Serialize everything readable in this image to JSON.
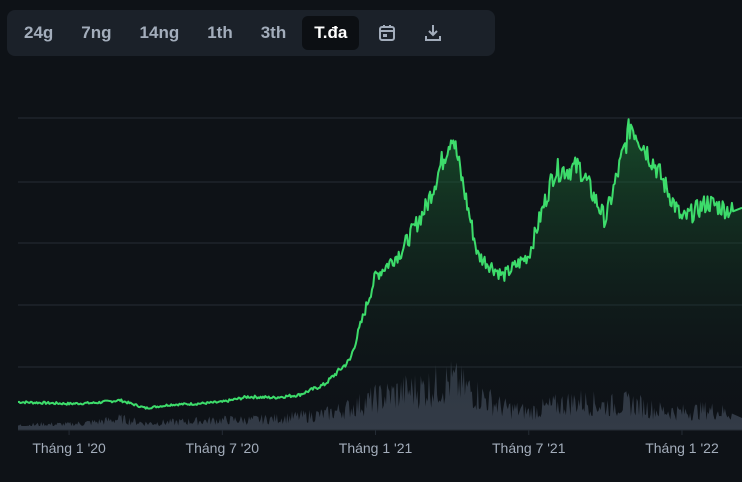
{
  "toolbar": {
    "ranges": [
      {
        "label": "24g",
        "active": false
      },
      {
        "label": "7ng",
        "active": false
      },
      {
        "label": "14ng",
        "active": false
      },
      {
        "label": "1th",
        "active": false
      },
      {
        "label": "3th",
        "active": false
      },
      {
        "label": "T.đa",
        "active": true
      }
    ],
    "calendar_icon": "calendar-icon",
    "download_icon": "download-icon"
  },
  "colors": {
    "background": "#0e1217",
    "toolbar_bg": "#1b2129",
    "line": "#3ddc6b",
    "volume": "#3a4350",
    "grid": "#252c35",
    "axis_text": "#a3adbb"
  },
  "chart_data": {
    "type": "area",
    "xlabel": "",
    "ylabel": "",
    "grid": true,
    "legend": "none",
    "x_ticks": [
      "Tháng 1 '20",
      "Tháng 7 '20",
      "Tháng 1 '21",
      "Tháng 7 '21",
      "Tháng 1 '22"
    ],
    "series": [
      {
        "x": [
          "2019-11",
          "2019-12",
          "2020-01",
          "2020-02",
          "2020-03",
          "2020-04",
          "2020-05",
          "2020-06",
          "2020-07",
          "2020-08",
          "2020-09",
          "2020-10",
          "2020-11",
          "2020-12",
          "2021-01",
          "2021-02",
          "2021-03",
          "2021-04",
          "2021-05",
          "2021-06",
          "2021-07",
          "2021-08",
          "2021-09",
          "2021-10",
          "2021-11",
          "2021-12",
          "2022-01",
          "2022-02",
          "2022-03"
        ],
        "values": [
          16,
          15.5,
          15,
          15.5,
          17,
          12.5,
          14.5,
          15,
          16,
          19,
          18.5,
          20,
          26,
          40,
          88,
          102,
          128,
          170,
          100,
          88,
          100,
          148,
          150,
          120,
          175,
          150,
          120,
          130,
          125
        ]
      }
    ],
    "volume": [
      4,
      5,
      5,
      7,
      10,
      6,
      7,
      8,
      9,
      9,
      10,
      12,
      14,
      20,
      28,
      34,
      38,
      44,
      32,
      20,
      16,
      22,
      26,
      22,
      24,
      18,
      16,
      18,
      15
    ]
  }
}
